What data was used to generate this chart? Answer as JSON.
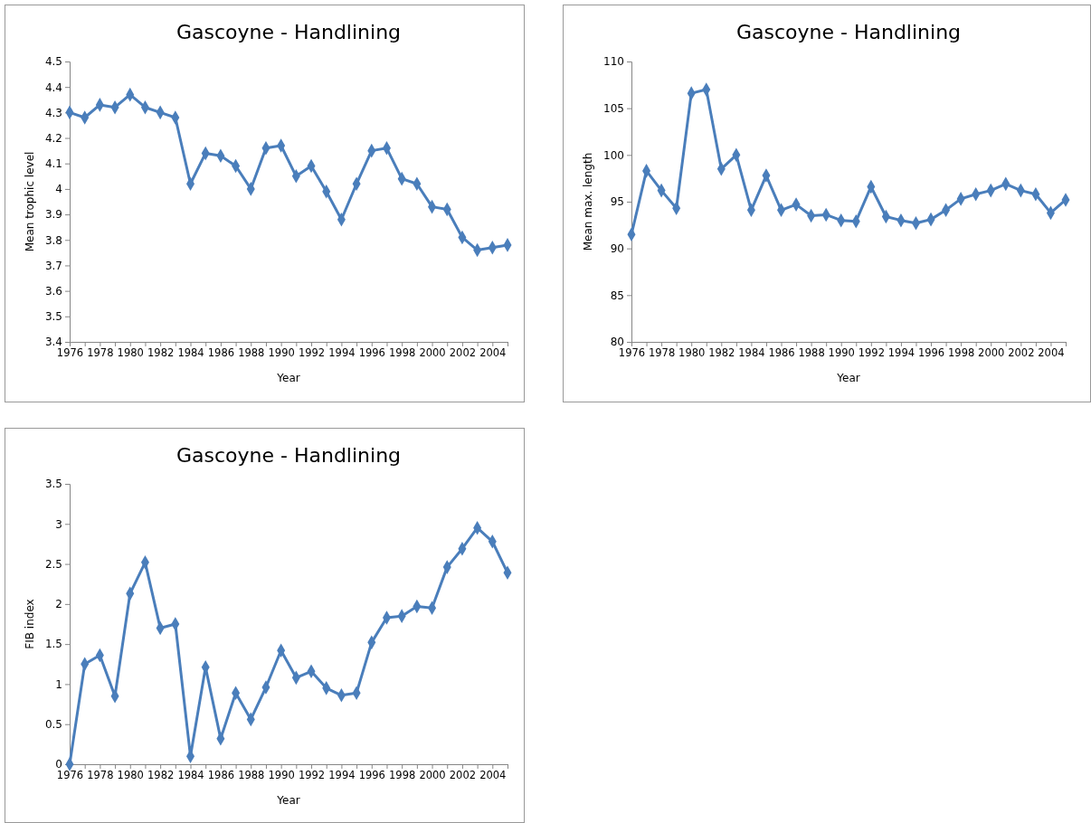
{
  "chart_data": [
    {
      "type": "line",
      "title": "Gascoyne - Handlining",
      "xlabel": "Year",
      "ylabel": "Mean trophic level",
      "categories": [
        "1976",
        null,
        "1978",
        null,
        "1980",
        null,
        "1982",
        null,
        "1984",
        null,
        "1986",
        null,
        "1988",
        null,
        "1990",
        null,
        "1992",
        null,
        "1994",
        null,
        "1996",
        null,
        "1998",
        null,
        "2000",
        null,
        "2002",
        null,
        "2004",
        null
      ],
      "series": [
        {
          "color": "#4a7ebb",
          "values": [
            4.3,
            4.28,
            4.33,
            4.32,
            4.37,
            4.32,
            4.3,
            4.28,
            4.02,
            4.14,
            4.13,
            4.09,
            4.0,
            4.16,
            4.17,
            4.05,
            4.09,
            3.99,
            3.88,
            4.02,
            4.15,
            4.16,
            4.04,
            4.02,
            3.93,
            3.92,
            3.81,
            3.76,
            3.77,
            3.78
          ]
        }
      ],
      "ylim": [
        3.4,
        4.5
      ],
      "yticks": [
        3.4,
        3.5,
        3.6,
        3.7,
        3.8,
        3.9,
        {
          "value": 4,
          "label": "4"
        },
        4.1,
        4.2,
        4.3,
        4.4,
        4.5
      ],
      "grid": false,
      "marker": "diamond",
      "line_style": "solid"
    },
    {
      "type": "line",
      "title": "Gascoyne - Handlining",
      "xlabel": "Year",
      "ylabel": "Mean max. length",
      "categories": [
        "1976",
        null,
        "1978",
        null,
        "1980",
        null,
        "1982",
        null,
        "1984",
        null,
        "1986",
        null,
        "1988",
        null,
        "1990",
        null,
        "1992",
        null,
        "1994",
        null,
        "1996",
        null,
        "1998",
        null,
        "2000",
        null,
        "2002",
        null,
        "2004",
        null
      ],
      "series": [
        {
          "color": "#4a7ebb",
          "values": [
            91.5,
            98.3,
            96.2,
            94.3,
            106.6,
            107.0,
            98.5,
            100.0,
            94.1,
            97.8,
            94.1,
            94.7,
            93.5,
            93.6,
            93.0,
            92.9,
            96.6,
            93.4,
            93.0,
            92.7,
            93.1,
            94.1,
            95.3,
            95.8,
            96.2,
            96.9,
            96.2,
            95.8,
            93.8,
            95.2
          ]
        }
      ],
      "ylim": [
        80,
        110
      ],
      "yticks": [
        80,
        85,
        90,
        95,
        100,
        105,
        110
      ],
      "grid": false,
      "marker": "diamond",
      "line_style": "solid"
    },
    {
      "type": "line",
      "title": "Gascoyne - Handlining",
      "xlabel": "Year",
      "ylabel": "FIB index",
      "categories": [
        "1976",
        null,
        "1978",
        null,
        "1980",
        null,
        "1982",
        null,
        "1984",
        null,
        "1986",
        null,
        "1988",
        null,
        "1990",
        null,
        "1992",
        null,
        "1994",
        null,
        "1996",
        null,
        "1998",
        null,
        "2000",
        null,
        "2002",
        null,
        "2004",
        null
      ],
      "series": [
        {
          "color": "#4a7ebb",
          "values": [
            0,
            1.25,
            1.36,
            0.85,
            2.13,
            2.52,
            1.7,
            1.75,
            0.1,
            1.21,
            0.32,
            0.89,
            0.56,
            0.96,
            1.42,
            1.08,
            1.16,
            0.95,
            0.86,
            0.89,
            1.52,
            1.83,
            1.85,
            1.97,
            1.95,
            2.46,
            2.69,
            2.95,
            2.78,
            2.39
          ]
        }
      ],
      "ylim": [
        0,
        3.5
      ],
      "yticks": [
        0,
        0.5,
        1,
        1.5,
        2,
        2.5,
        3,
        3.5
      ],
      "grid": false,
      "marker": "diamond",
      "line_style": "solid"
    }
  ]
}
